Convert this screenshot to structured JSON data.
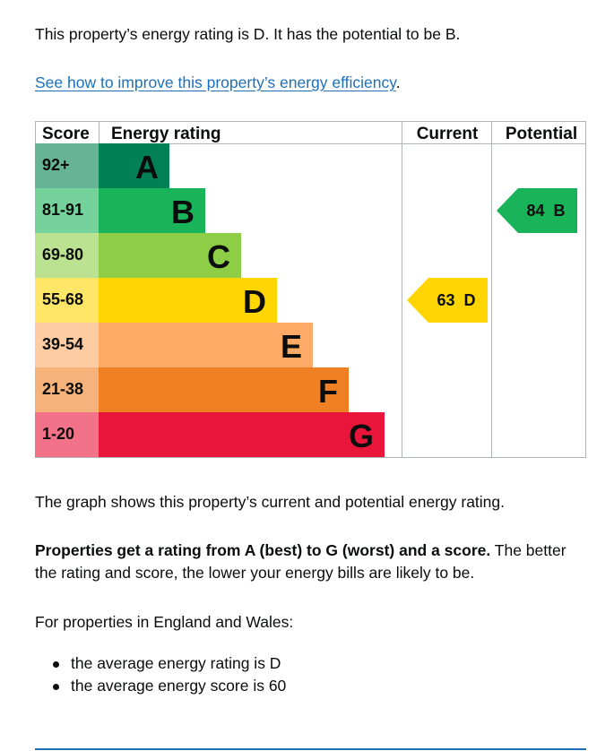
{
  "intro": {
    "summary": "This property’s energy rating is D. It has the potential to be B.",
    "link_text": "See how to improve this property’s energy efficiency",
    "link_suffix": "."
  },
  "chart_data": {
    "type": "bar",
    "headers": {
      "score": "Score",
      "rating": "Energy rating",
      "current": "Current",
      "potential": "Potential"
    },
    "bands": [
      {
        "range": "92+",
        "letter": "A",
        "color": "#008054",
        "range_color": "#66b398"
      },
      {
        "range": "81-91",
        "letter": "B",
        "color": "#19b459",
        "range_color": "#75d29b"
      },
      {
        "range": "69-80",
        "letter": "C",
        "color": "#8dce46",
        "range_color": "#bbe290"
      },
      {
        "range": "55-68",
        "letter": "D",
        "color": "#ffd500",
        "range_color": "#ffe666"
      },
      {
        "range": "39-54",
        "letter": "E",
        "color": "#fcaa65",
        "range_color": "#fdcca3"
      },
      {
        "range": "21-38",
        "letter": "F",
        "color": "#ef8023",
        "range_color": "#f5b37b"
      },
      {
        "range": "1-20",
        "letter": "G",
        "color": "#e9153b",
        "range_color": "#f27389"
      }
    ],
    "current": {
      "score": 63,
      "letter": "D",
      "label": "63  D",
      "color": "#ffd500"
    },
    "potential": {
      "score": 84,
      "letter": "B",
      "label": "84  B",
      "color": "#19b459"
    }
  },
  "explanation": {
    "graph_note": "The graph shows this property’s current and potential energy rating.",
    "bold_text": "Properties get a rating from A (best) to G (worst) and a score.",
    "rest_text": " The better the rating and score, the lower your energy bills are likely to be."
  },
  "averages": {
    "heading": "For properties in England and Wales:",
    "items": [
      "the average energy rating is D",
      "the average energy score is 60"
    ]
  }
}
